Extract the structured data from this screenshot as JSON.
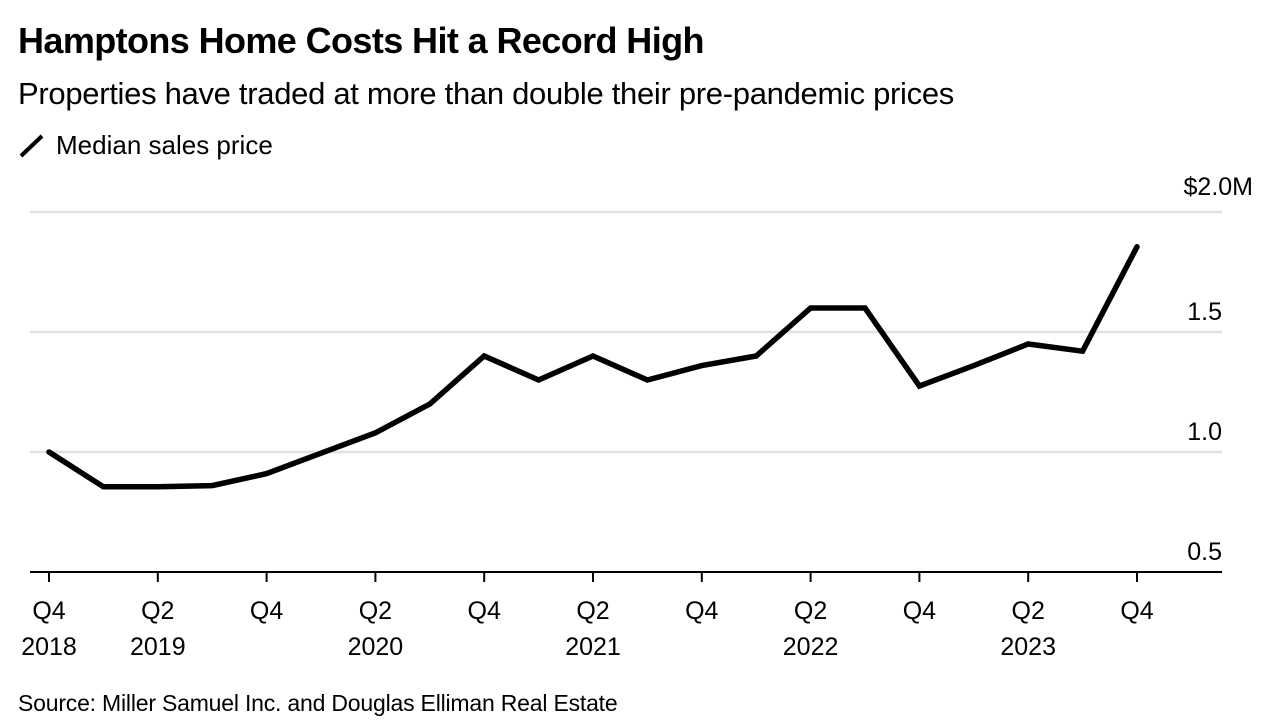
{
  "header": {
    "title": "Hamptons Home Costs Hit a Record High",
    "subtitle": "Properties have traded at more than double their pre-pandemic prices"
  },
  "legend": {
    "items": [
      {
        "label": "Median sales price",
        "icon": "line-swatch-icon",
        "color": "#000000"
      }
    ]
  },
  "footer": {
    "source": "Source: Miller Samuel Inc. and Douglas Elliman Real Estate"
  },
  "colors": {
    "line": "#000000",
    "grid": "#e0e0e0",
    "axis": "#000000"
  },
  "chart_data": {
    "type": "line",
    "title": "Hamptons Home Costs Hit a Record High",
    "subtitle": "Properties have traded at more than double their pre-pandemic prices",
    "xlabel": "",
    "ylabel": "Median sales price ($M)",
    "ylim": [
      0.5,
      2.0
    ],
    "grid": true,
    "legend_position": "top-left",
    "y_axis_side": "right",
    "y_ticks": [
      {
        "value": 2.0,
        "label": "$2.0M"
      },
      {
        "value": 1.5,
        "label": "1.5"
      },
      {
        "value": 1.0,
        "label": "1.0"
      },
      {
        "value": 0.5,
        "label": "0.5"
      }
    ],
    "x": [
      "Q4 2018",
      "Q1 2019",
      "Q2 2019",
      "Q3 2019",
      "Q4 2019",
      "Q1 2020",
      "Q2 2020",
      "Q3 2020",
      "Q4 2020",
      "Q1 2021",
      "Q2 2021",
      "Q3 2021",
      "Q4 2021",
      "Q1 2022",
      "Q2 2022",
      "Q3 2022",
      "Q4 2022",
      "Q1 2023",
      "Q2 2023",
      "Q3 2023",
      "Q4 2023"
    ],
    "x_ticks": [
      {
        "index": 0,
        "line1": "Q4",
        "line2": "2018"
      },
      {
        "index": 2,
        "line1": "Q2",
        "line2": "2019"
      },
      {
        "index": 4,
        "line1": "Q4",
        "line2": ""
      },
      {
        "index": 6,
        "line1": "Q2",
        "line2": "2020"
      },
      {
        "index": 8,
        "line1": "Q4",
        "line2": ""
      },
      {
        "index": 10,
        "line1": "Q2",
        "line2": "2021"
      },
      {
        "index": 12,
        "line1": "Q4",
        "line2": ""
      },
      {
        "index": 14,
        "line1": "Q2",
        "line2": "2022"
      },
      {
        "index": 16,
        "line1": "Q4",
        "line2": ""
      },
      {
        "index": 18,
        "line1": "Q2",
        "line2": "2023"
      },
      {
        "index": 20,
        "line1": "Q4",
        "line2": ""
      }
    ],
    "series": [
      {
        "name": "Median sales price",
        "unit": "$M",
        "values": [
          1.0,
          0.855,
          0.855,
          0.86,
          0.91,
          0.995,
          1.08,
          1.2,
          1.4,
          1.3,
          1.4,
          1.3,
          1.36,
          1.4,
          1.6,
          1.6,
          1.275,
          1.36,
          1.45,
          1.42,
          1.855
        ]
      }
    ]
  }
}
